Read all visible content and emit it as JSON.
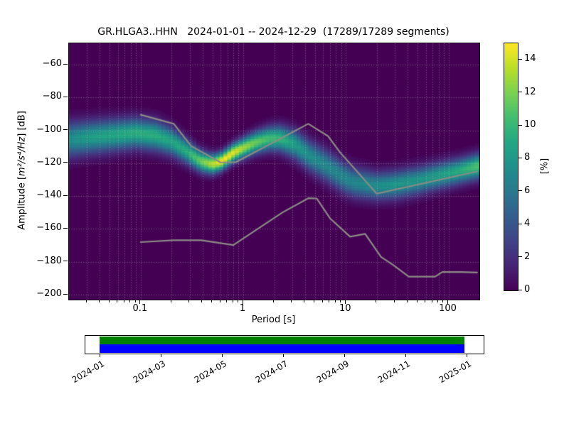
{
  "figure": {
    "title": "GR.HLGA3..HHN   2024-01-01 -- 2024-12-29  (17289/17289 segments)",
    "xlabel": "Period [s]",
    "ylabel": {
      "prefix": "Amplitude [",
      "math": "m²/s⁴/Hz",
      "suffix": "] [dB]"
    },
    "colorbar_label": "[%]"
  },
  "chart_data": {
    "type": "heatmap",
    "subtype": "ppsd-probability-density",
    "title": "GR.HLGA3..HHN   2024-01-01 -- 2024-12-29  (17289/17289 segments)",
    "station": "GR.HLGA3..HHN",
    "date_range": "2024-01-01 -- 2024-12-29",
    "segments_used": "17289/17289",
    "xlabel": "Period [s]",
    "ylabel": "Amplitude [m²/s⁴/Hz] [dB]",
    "xscale": "log",
    "xlim": [
      0.02,
      200
    ],
    "ylim": [
      -203,
      -47
    ],
    "xticks": {
      "values": [
        0.1,
        1,
        10,
        100
      ],
      "labels": [
        "0.1",
        "1",
        "10",
        "100"
      ]
    },
    "yticks": {
      "values": [
        -60,
        -80,
        -100,
        -120,
        -140,
        -160,
        -180,
        -200
      ],
      "labels": [
        "−60",
        "−80",
        "−100",
        "−120",
        "−140",
        "−160",
        "−180",
        "−200"
      ]
    },
    "grid": "dotted, major+minor vertical (log), major horizontal",
    "grid_color": "rgba(205,205,198,0.5)",
    "colormap": "viridis",
    "background_value": 0,
    "colorbar": {
      "label": "[%]",
      "min": 0,
      "max": 15,
      "ticks": [
        0,
        2,
        4,
        6,
        8,
        10,
        12,
        14
      ],
      "tick_labels": [
        "0",
        "2",
        "4",
        "6",
        "8",
        "10",
        "12",
        "14"
      ]
    },
    "period_bin_octaves": 0.125,
    "db_bin": 1,
    "ppsd_ridge": [
      {
        "period": 0.02,
        "db": -105.5,
        "pct": 7.5,
        "sigma": 7.0
      },
      {
        "period": 0.033,
        "db": -104.0,
        "pct": 8.5,
        "sigma": 6.6
      },
      {
        "period": 0.055,
        "db": -102.7,
        "pct": 9.0,
        "sigma": 6.3
      },
      {
        "period": 0.09,
        "db": -101.5,
        "pct": 9.5,
        "sigma": 6.0
      },
      {
        "period": 0.14,
        "db": -103.0,
        "pct": 9.5,
        "sigma": 6.0
      },
      {
        "period": 0.2,
        "db": -106.5,
        "pct": 9.0,
        "sigma": 5.6
      },
      {
        "period": 0.28,
        "db": -112.5,
        "pct": 9.5,
        "sigma": 4.9
      },
      {
        "period": 0.38,
        "db": -118.5,
        "pct": 11.5,
        "sigma": 4.3
      },
      {
        "period": 0.5,
        "db": -120.5,
        "pct": 13.5,
        "sigma": 3.9
      },
      {
        "period": 0.62,
        "db": -118.5,
        "pct": 15.0,
        "sigma": 3.6
      },
      {
        "period": 0.8,
        "db": -113.5,
        "pct": 14.5,
        "sigma": 3.7
      },
      {
        "period": 1.0,
        "db": -110.5,
        "pct": 13.0,
        "sigma": 4.0
      },
      {
        "period": 1.35,
        "db": -107.0,
        "pct": 11.5,
        "sigma": 4.4
      },
      {
        "period": 1.8,
        "db": -104.8,
        "pct": 10.5,
        "sigma": 4.8
      },
      {
        "period": 2.3,
        "db": -104.8,
        "pct": 10.0,
        "sigma": 5.2
      },
      {
        "period": 3.2,
        "db": -108.5,
        "pct": 8.5,
        "sigma": 5.8
      },
      {
        "period": 4.5,
        "db": -115.5,
        "pct": 7.5,
        "sigma": 6.2
      },
      {
        "period": 6.5,
        "db": -121.5,
        "pct": 7.0,
        "sigma": 6.4
      },
      {
        "period": 9.5,
        "db": -128.5,
        "pct": 7.0,
        "sigma": 6.2
      },
      {
        "period": 12,
        "db": -131.5,
        "pct": 7.0,
        "sigma": 6.0
      },
      {
        "period": 20,
        "db": -133.8,
        "pct": 7.5,
        "sigma": 5.6
      },
      {
        "period": 30,
        "db": -133.0,
        "pct": 8.0,
        "sigma": 5.6
      },
      {
        "period": 50,
        "db": -130.5,
        "pct": 8.0,
        "sigma": 5.5
      },
      {
        "period": 80,
        "db": -127.5,
        "pct": 8.5,
        "sigma": 5.3
      },
      {
        "period": 130,
        "db": -124.5,
        "pct": 9.5,
        "sigma": 5.1
      },
      {
        "period": 200,
        "db": -121.5,
        "pct": 11.0,
        "sigma": 5.0
      }
    ],
    "noise_models": {
      "color": "#8b8b85",
      "nhnm": [
        [
          0.1,
          -90.5
        ],
        [
          0.21,
          -96
        ],
        [
          0.31,
          -109.5
        ],
        [
          0.6,
          -119.5
        ],
        [
          0.85,
          -119.3
        ],
        [
          4.3,
          -96
        ],
        [
          6.7,
          -103.5
        ],
        [
          8.8,
          -113.5
        ],
        [
          20,
          -138.5
        ],
        [
          190,
          -125
        ]
      ],
      "nlnm": [
        [
          0.1,
          -168
        ],
        [
          0.21,
          -166.9
        ],
        [
          0.39,
          -166.9
        ],
        [
          0.8,
          -169.8
        ],
        [
          2.4,
          -150
        ],
        [
          4.3,
          -141.3
        ],
        [
          5.2,
          -141.5
        ],
        [
          7,
          -153.5
        ],
        [
          11,
          -164.7
        ],
        [
          15.4,
          -163
        ],
        [
          22,
          -177
        ],
        [
          29,
          -182
        ],
        [
          41,
          -189
        ],
        [
          74,
          -189
        ],
        [
          87,
          -186.2
        ],
        [
          135,
          -186.2
        ],
        [
          190,
          -186.5
        ]
      ]
    },
    "timeline": {
      "tick_labels": [
        "2024-01",
        "2024-03",
        "2024-05",
        "2024-07",
        "2024-09",
        "2024-11",
        "2025-01"
      ],
      "top_bar_color": "#008000",
      "bottom_bar_color": "#0000ff"
    }
  }
}
